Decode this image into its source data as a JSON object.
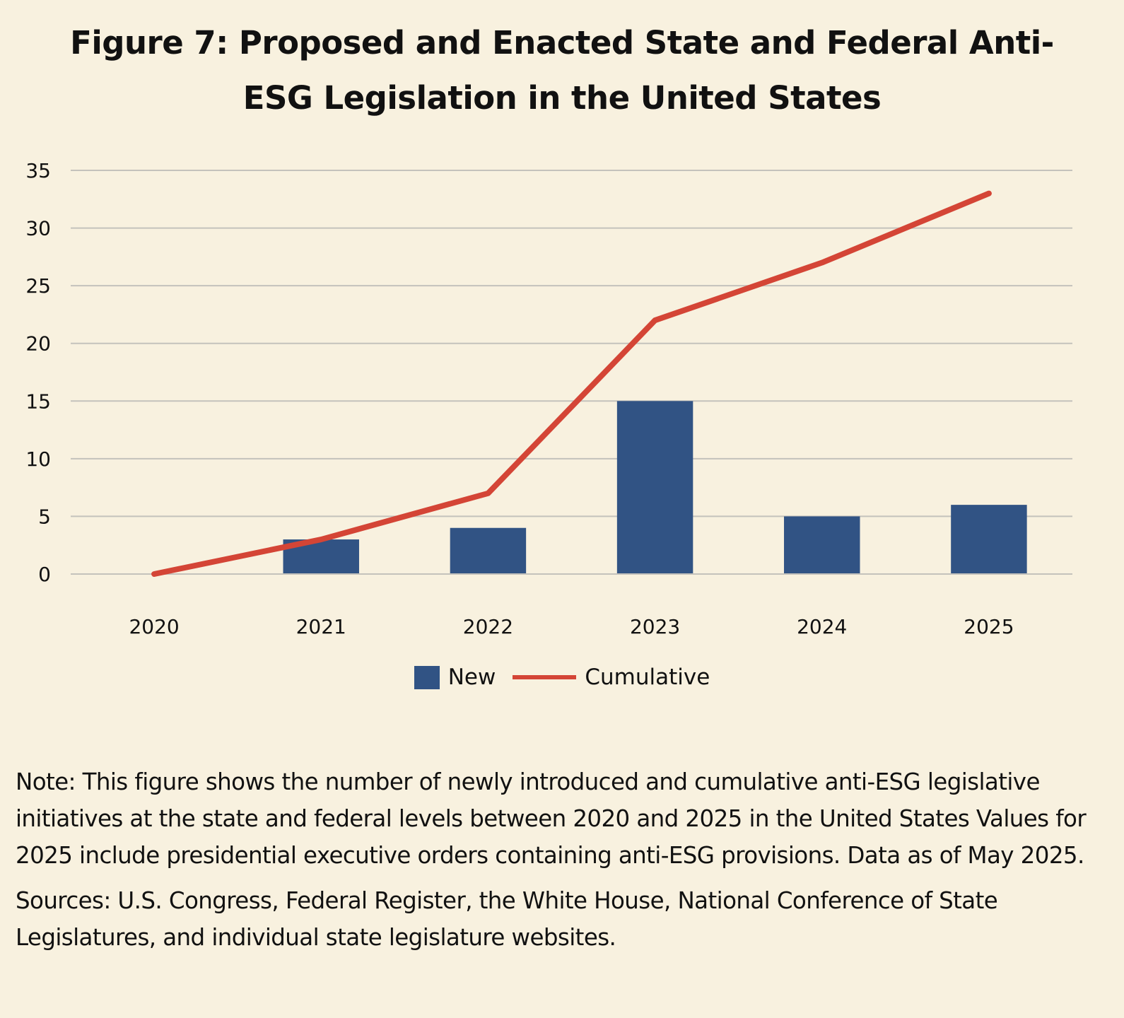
{
  "title_lines": [
    "Figure 7: Proposed and Enacted State and Federal Anti-",
    "ESG Legislation in the United States"
  ],
  "colors": {
    "background": "#f8f1df",
    "bar": "#315384",
    "line": "#d44536",
    "grid": "#c4c2bc"
  },
  "chart_data": {
    "type": "bar",
    "title": "Figure 7: Proposed and Enacted State and Federal Anti-ESG Legislation in the United States",
    "xlabel": "",
    "ylabel": "",
    "categories": [
      "2020",
      "2021",
      "2022",
      "2023",
      "2024",
      "2025"
    ],
    "series": [
      {
        "name": "New",
        "type": "bar",
        "color": "#315384",
        "values": [
          0,
          3,
          4,
          15,
          5,
          6
        ]
      },
      {
        "name": "Cumulative",
        "type": "line",
        "color": "#d44536",
        "values": [
          0,
          3,
          7,
          22,
          27,
          33
        ]
      }
    ],
    "ylim": [
      0,
      35
    ],
    "yticks": [
      0,
      5,
      10,
      15,
      20,
      25,
      30,
      35
    ],
    "grid": true,
    "legend": "bottom-center"
  },
  "legend": [
    {
      "label": "New",
      "kind": "bar"
    },
    {
      "label": "Cumulative",
      "kind": "line"
    }
  ],
  "notes": {
    "note": "Note: This figure shows the number of newly introduced and cumulative anti-ESG legislative initiatives at the state and federal levels between 2020 and 2025 in the United States Values for 2025 include presidential executive orders containing anti-ESG provisions. Data as of May 2025.",
    "sources": "Sources: U.S. Congress, Federal Register, the White House, National Conference of State Legislatures, and individual state legislature websites."
  }
}
